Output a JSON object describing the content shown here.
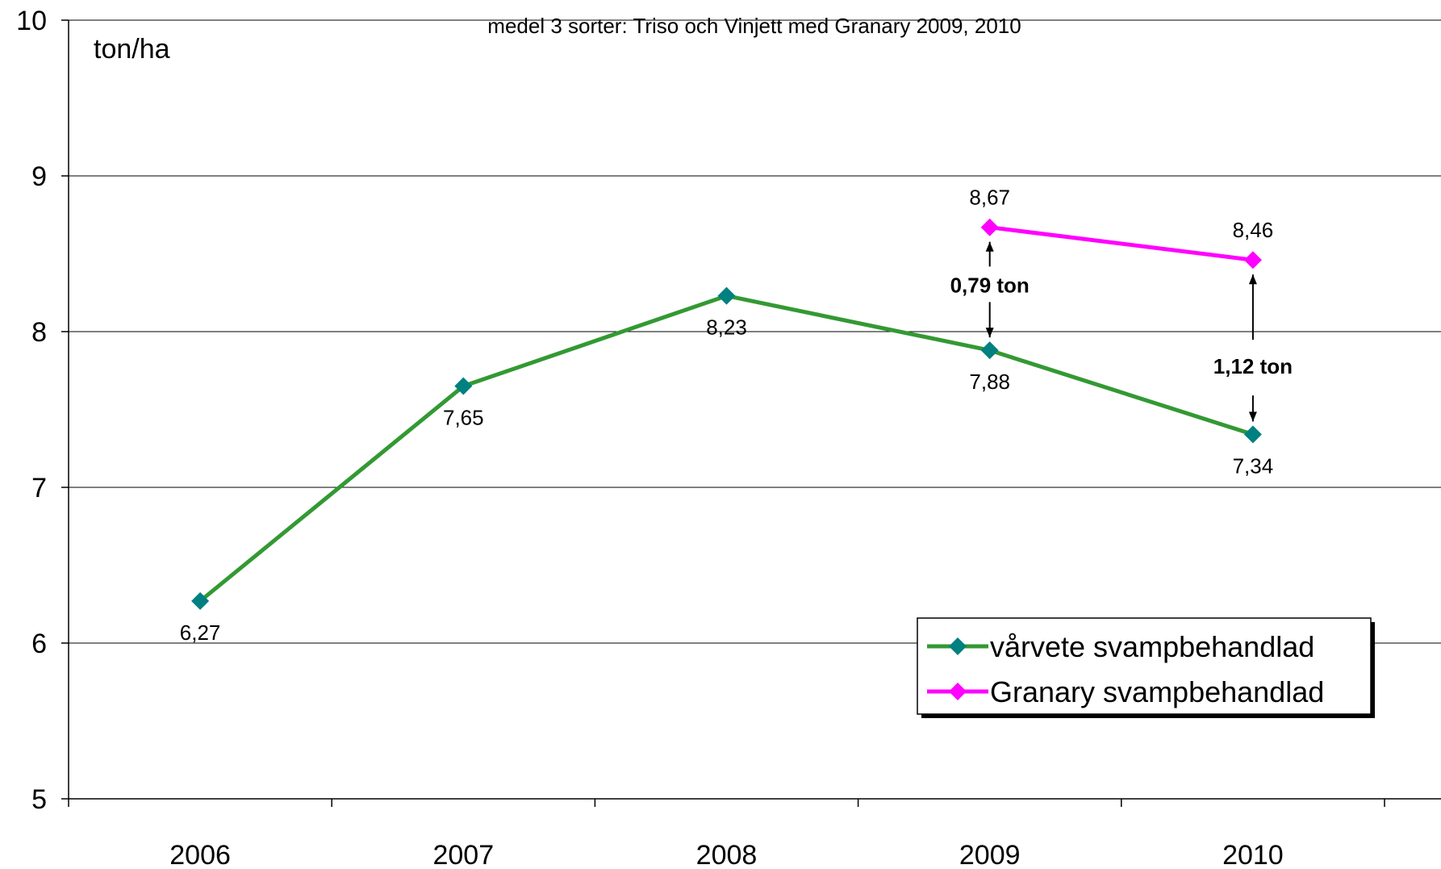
{
  "chart_data": {
    "type": "line",
    "subtitle": "medel 3 sorter: Triso och Vinjett med Granary 2009, 2010",
    "ylabel": "ton/ha",
    "xlabel": "",
    "categories": [
      "2006",
      "2007",
      "2008",
      "2009",
      "2010"
    ],
    "ylim": [
      5,
      10
    ],
    "yticks": [
      5,
      6,
      7,
      8,
      9,
      10
    ],
    "grid": true,
    "legend_position": "bottom-right",
    "series": [
      {
        "name": "vårvete svampbehandlad",
        "color": "#339933",
        "marker_color": "#008080",
        "values": [
          6.27,
          7.65,
          8.23,
          7.88,
          7.34
        ],
        "labels": [
          "6,27",
          "7,65",
          "8,23",
          "7,88",
          "7,34"
        ]
      },
      {
        "name": "Granary svampbehandlad",
        "color": "#FF00FF",
        "marker_color": "#FF00FF",
        "values": [
          null,
          null,
          null,
          8.67,
          8.46
        ],
        "labels": [
          "",
          "",
          "",
          "8,67",
          "8,46"
        ]
      }
    ],
    "annotations": [
      {
        "category": "2009",
        "text": "0,79 ton"
      },
      {
        "category": "2010",
        "text": "1,12 ton"
      }
    ]
  }
}
